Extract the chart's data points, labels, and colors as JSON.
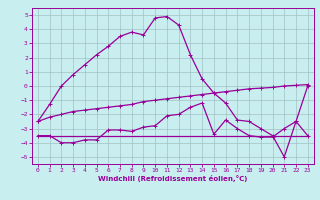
{
  "xlabel": "Windchill (Refroidissement éolien,°C)",
  "bg_color": "#c8eef0",
  "line_color": "#990099",
  "xlim": [
    -0.5,
    23.5
  ],
  "ylim": [
    -5.5,
    5.5
  ],
  "xticks": [
    0,
    1,
    2,
    3,
    4,
    5,
    6,
    7,
    8,
    9,
    10,
    11,
    12,
    13,
    14,
    15,
    16,
    17,
    18,
    19,
    20,
    21,
    22,
    23
  ],
  "yticks": [
    -5,
    -4,
    -3,
    -2,
    -1,
    0,
    1,
    2,
    3,
    4,
    5
  ],
  "line1_x": [
    0,
    1,
    2,
    3,
    4,
    5,
    6,
    7,
    8,
    9,
    10,
    11,
    12,
    13,
    14,
    15,
    16,
    17,
    18,
    19,
    20,
    21,
    22,
    23
  ],
  "line1_y": [
    -2.5,
    -1.3,
    0.0,
    0.8,
    1.5,
    2.2,
    2.8,
    3.5,
    3.8,
    3.6,
    4.8,
    4.9,
    4.3,
    2.2,
    0.5,
    -0.5,
    -1.2,
    -2.4,
    -2.5,
    -3.0,
    -3.5,
    -5.0,
    -2.5,
    0.0
  ],
  "line2_x": [
    0,
    1,
    2,
    3,
    4,
    5,
    6,
    7,
    8,
    9,
    10,
    11,
    12,
    13,
    14,
    15,
    16,
    17,
    18,
    19,
    20,
    21,
    22,
    23
  ],
  "line2_y": [
    -2.5,
    -2.2,
    -2.0,
    -1.8,
    -1.7,
    -1.6,
    -1.5,
    -1.4,
    -1.3,
    -1.1,
    -1.0,
    -0.9,
    -0.8,
    -0.7,
    -0.6,
    -0.5,
    -0.4,
    -0.3,
    -0.2,
    -0.15,
    -0.1,
    0.0,
    0.05,
    0.1
  ],
  "line3_x": [
    0,
    1,
    2,
    3,
    4,
    5,
    6,
    7,
    8,
    9,
    10,
    11,
    12,
    13,
    14,
    15,
    16,
    17,
    18,
    19,
    20,
    21,
    22,
    23
  ],
  "line3_y": [
    -3.5,
    -3.5,
    -4.0,
    -4.0,
    -3.8,
    -3.8,
    -3.1,
    -3.1,
    -3.2,
    -2.9,
    -2.8,
    -2.1,
    -2.0,
    -1.5,
    -1.2,
    -3.4,
    -2.4,
    -3.0,
    -3.5,
    -3.6,
    -3.6,
    -3.0,
    -2.5,
    -3.5
  ],
  "line4_x": [
    0,
    23
  ],
  "line4_y": [
    -3.5,
    -3.5
  ],
  "grid_color": "#9ab8ba"
}
